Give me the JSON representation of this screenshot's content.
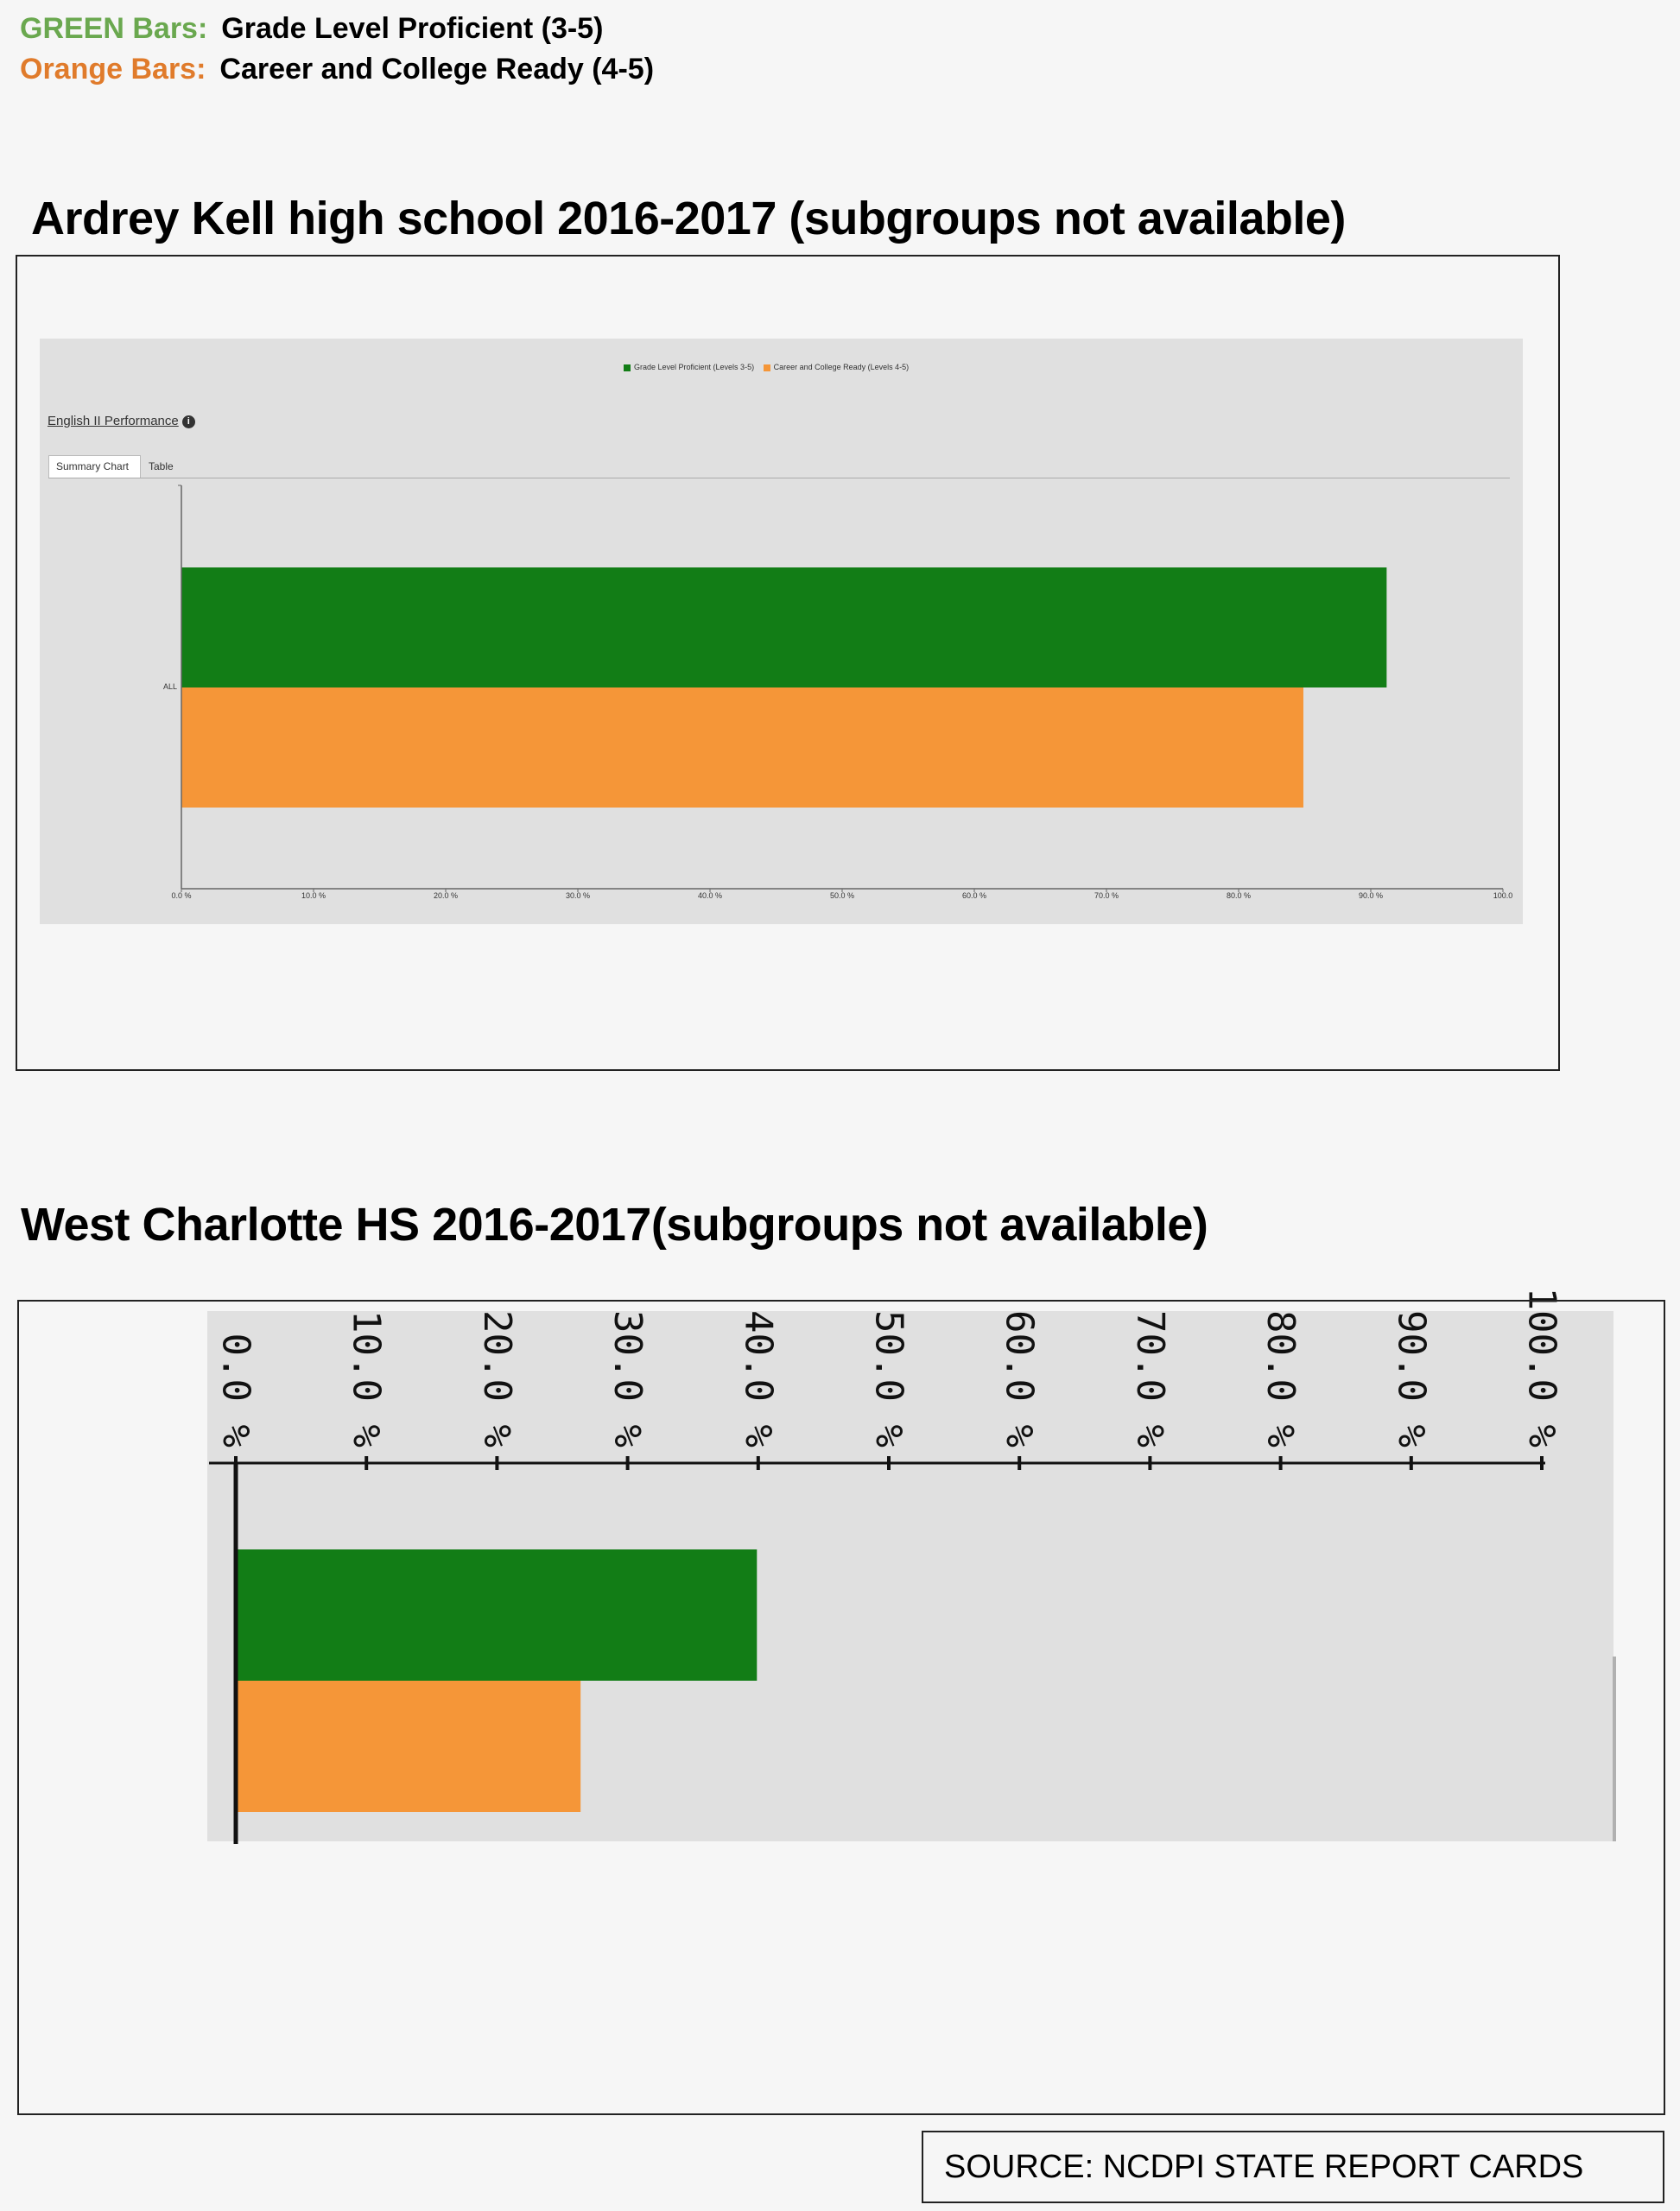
{
  "legend": {
    "green_key": "GREEN Bars:",
    "green_desc": "Grade Level Proficient (3-5)",
    "orange_key": "Orange Bars:",
    "orange_desc": "Career and College Ready (4-5)"
  },
  "colors": {
    "green_text": "#6aa84f",
    "orange_text": "#e07b2b",
    "green_bar": "#127d16",
    "orange_bar": "#f59638"
  },
  "chart1": {
    "section_title": "Ardrey Kell high school 2016-2017 (subgroups not available)",
    "mini_legend": [
      "Grade Level Proficient (Levels 3-5)",
      "Career and College Ready (Levels 4-5)"
    ],
    "link_title": "English II Performance",
    "info_icon": "info-icon",
    "tabs": [
      "Summary Chart",
      "Table"
    ]
  },
  "chart2": {
    "section_title": "West Charlotte HS  2016-2017(subgroups not available)"
  },
  "source": "SOURCE:  NCDPI STATE REPORT CARDS",
  "chart_data": [
    {
      "type": "bar",
      "orientation": "horizontal",
      "title": "Ardrey Kell high school 2016-2017 (subgroups not available)",
      "categories": [
        "ALL"
      ],
      "series": [
        {
          "name": "Grade Level Proficient (Levels 3-5)",
          "values": [
            91.2
          ],
          "color": "#127d16"
        },
        {
          "name": "Career and College Ready (Levels 4-5)",
          "values": [
            84.9
          ],
          "color": "#f59638"
        }
      ],
      "x_ticks": [
        "0.0 %",
        "10.0 %",
        "20.0 %",
        "30.0 %",
        "40.0 %",
        "50.0 %",
        "60.0 %",
        "70.0 %",
        "80.0 %",
        "90.0 %",
        "100.0"
      ],
      "xlim": [
        0,
        100
      ],
      "legend_position": "top",
      "grid": false
    },
    {
      "type": "bar",
      "orientation": "horizontal",
      "title": "West Charlotte HS  2016-2017(subgroups not available)",
      "categories": [
        ""
      ],
      "series": [
        {
          "name": "",
          "values": [
            39.9
          ],
          "color": "#127d16"
        },
        {
          "name": "",
          "values": [
            26.4
          ],
          "color": "#f59638"
        }
      ],
      "x_ticks": [
        "0.0 %",
        "10.0 %",
        "20.0 %",
        "30.0 %",
        "40.0 %",
        "50.0 %",
        "60.0 %",
        "70.0 %",
        "80.0 %",
        "90.0 %",
        "100.0 %"
      ],
      "xlim": [
        0,
        100
      ],
      "tick_label_rotation": "vertical",
      "axis_position": "top",
      "grid": false
    }
  ]
}
